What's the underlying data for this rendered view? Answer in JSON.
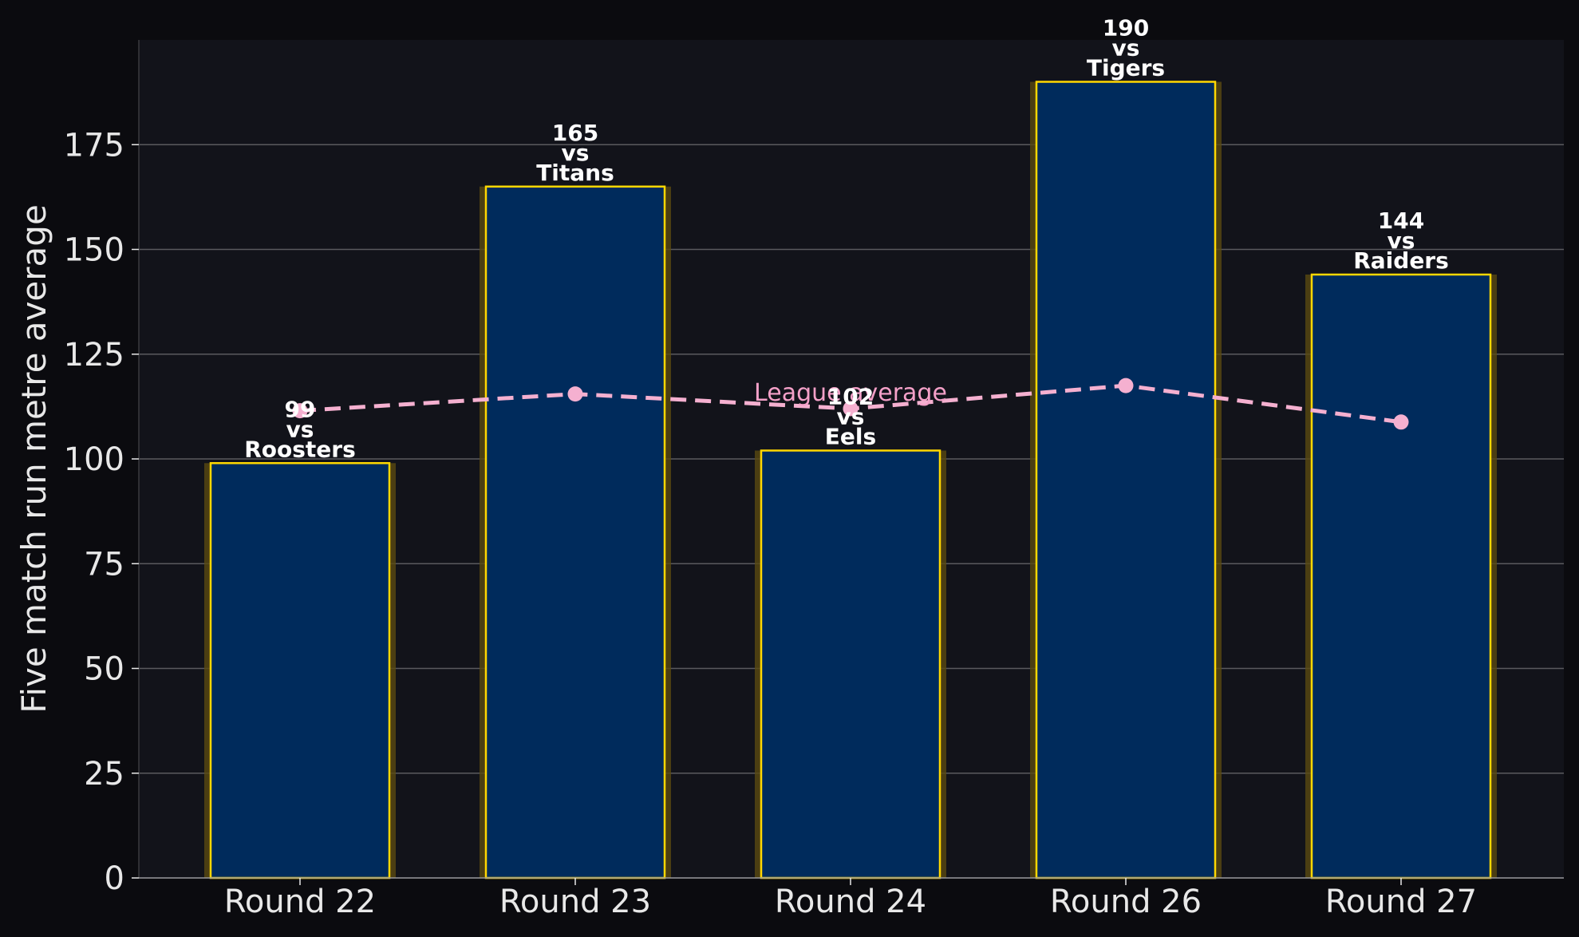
{
  "chart_data": {
    "type": "bar",
    "ylabel": "Five match run metre average",
    "ylim": [
      0,
      200
    ],
    "yticks": [
      0,
      25,
      50,
      75,
      100,
      125,
      150,
      175
    ],
    "grid": true,
    "categories": [
      "Round 22",
      "Round 23",
      "Round 24",
      "Round 26",
      "Round 27"
    ],
    "values": [
      99,
      165,
      102,
      190,
      144
    ],
    "opponents": [
      "Roosters",
      "Titans",
      "Eels",
      "Tigers",
      "Raiders"
    ],
    "vs_text": "vs",
    "league_average": {
      "label": "League average",
      "values": [
        111.5,
        115.5,
        112,
        117.5,
        108.8
      ]
    },
    "colors": {
      "background": "#0b0b0f",
      "plot_background": "#12131a",
      "bar_fill": "#002b5c",
      "bar_edge": "#ffd700",
      "bar_glow": "#5a4a10",
      "grid": "#5a5a5e",
      "average_line": "#f5b0d0",
      "average_label": "#f4a0c8",
      "text": "#e8e8e8"
    }
  }
}
